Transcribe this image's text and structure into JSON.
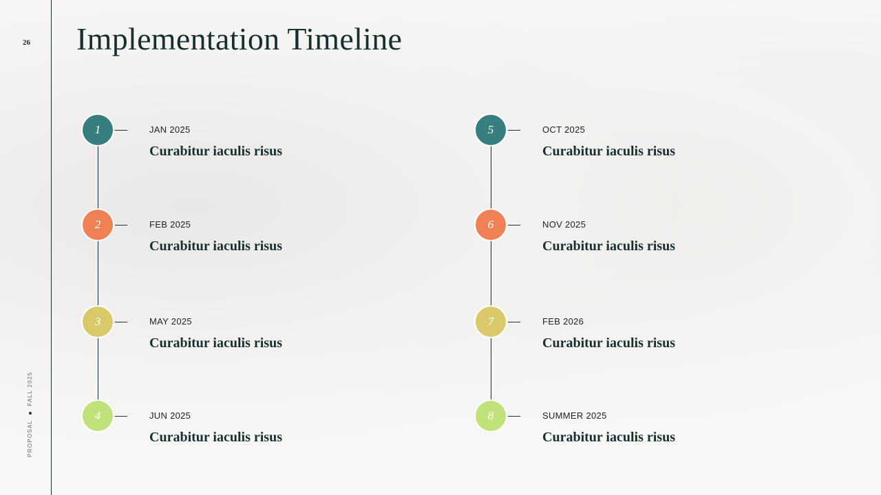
{
  "page_number": "26",
  "footer": {
    "left": "PROPOSAL",
    "right": "FALL 2025"
  },
  "title": "Implementation Timeline",
  "colors": {
    "teal": "#367f7e",
    "orange": "#f08154",
    "yellow": "#d9c96a",
    "lime": "#bfe27a"
  },
  "items": [
    {
      "num": "1",
      "date": "JAN 2025",
      "title": "Curabitur iaculis risus",
      "color": "#367f7e"
    },
    {
      "num": "2",
      "date": "FEB 2025",
      "title": "Curabitur iaculis risus",
      "color": "#f08154"
    },
    {
      "num": "3",
      "date": "MAY 2025",
      "title": "Curabitur iaculis risus",
      "color": "#d9c96a"
    },
    {
      "num": "4",
      "date": "JUN 2025",
      "title": "Curabitur iaculis risus",
      "color": "#bfe27a"
    },
    {
      "num": "5",
      "date": "OCT 2025",
      "title": "Curabitur iaculis risus",
      "color": "#367f7e"
    },
    {
      "num": "6",
      "date": "NOV 2025",
      "title": "Curabitur iaculis risus",
      "color": "#f08154"
    },
    {
      "num": "7",
      "date": "FEB 2026",
      "title": "Curabitur iaculis risus",
      "color": "#d9c96a"
    },
    {
      "num": "8",
      "date": "SUMMER 2025",
      "title": "Curabitur iaculis risus",
      "color": "#bfe27a"
    }
  ]
}
